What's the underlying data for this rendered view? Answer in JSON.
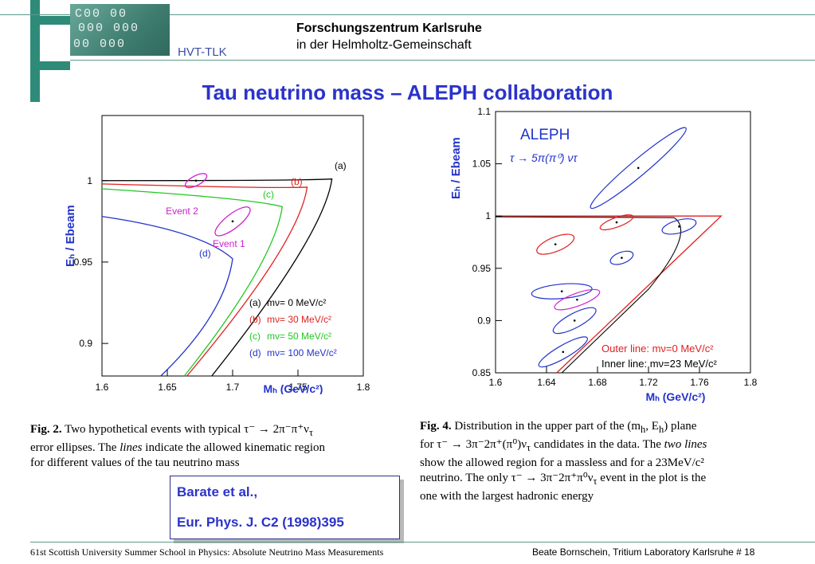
{
  "header": {
    "org_line1": "Forschungszentrum Karlsruhe",
    "org_line2": "in  der  Helmholtz-Gemeinschaft",
    "unit": "HVT-TLK",
    "accent_color": "#2e8b7a"
  },
  "slide_title": "Tau neutrino mass – ALEPH collaboration",
  "figure_left": {
    "caption_label": "Fig. 2.",
    "caption_l1": " Two hypothetical events with typical τ⁻ → 2π⁻π⁺ν",
    "caption_sub": "τ",
    "caption_l2": "error ellipses. The ",
    "caption_lines": "lines",
    "caption_l2b": " indicate the allowed kinematic region",
    "caption_l3": "for different values of the tau neutrino mass"
  },
  "figure_right": {
    "caption_label": "Fig. 4.",
    "caption_l1": " Distribution in the upper part of the (m",
    "caption_l1_sub": "h",
    "caption_l1b": ", E",
    "caption_l1c": ") plane",
    "caption_l2": "for τ⁻ → 3π⁻2π⁺(π⁰)ν",
    "caption_l2b": " candidates in the data. The ",
    "caption_two_lines": "two lines",
    "caption_l3": "show the allowed region for a massless and for a 23MeV/c²",
    "caption_l4": "neutrino. The only τ⁻ → 3π⁻2π⁺π⁰ν",
    "caption_l4b": " event in the plot is the",
    "caption_l5": "one with the largest hadronic energy"
  },
  "reference": {
    "line1": "Barate et al.,",
    "line2": "Eur. Phys. J. C2 (1998)395"
  },
  "footer": {
    "left": "61st Scottish University Summer School in Physics: Absolute Neutrino Mass Measurements",
    "right": "Beate Bornschein, Tritium Laboratory Karlsruhe   # 18"
  },
  "chart_data": [
    {
      "type": "line",
      "xlabel": "Mₕ (GeV/c²)",
      "ylabel": "Eₕ / Ebeam",
      "xlim": [
        1.6,
        1.8
      ],
      "ylim": [
        0.88,
        1.04
      ],
      "x_ticks": [
        "1.6",
        "1.65",
        "1.7",
        "1.75",
        "1.8"
      ],
      "y_ticks": [
        "0.9",
        "0.95",
        "1"
      ],
      "legend": [
        {
          "tag": "(a)",
          "text": "mν=   0 MeV/c²",
          "color": "#000000"
        },
        {
          "tag": "(b)",
          "text": "mν=  30 MeV/c²",
          "color": "#e02020"
        },
        {
          "tag": "(c)",
          "text": "mν=  50 MeV/c²",
          "color": "#22c722"
        },
        {
          "tag": "(d)",
          "text": "mν= 100 MeV/c²",
          "color": "#2233cc"
        }
      ],
      "curve_tags": [
        "(a)",
        "(b)",
        "(c)",
        "(d)"
      ],
      "events": [
        {
          "label": "Event 2",
          "x": 1.672,
          "y": 1.0,
          "color": "#cc22cc"
        },
        {
          "label": "Event 1",
          "x": 1.7,
          "y": 0.975,
          "color": "#cc22cc"
        }
      ]
    },
    {
      "type": "scatter",
      "xlabel": "Mₕ (GeV/c²)",
      "ylabel": "Eₕ / Ebeam",
      "xlim": [
        1.6,
        1.8
      ],
      "ylim": [
        0.85,
        1.1
      ],
      "x_ticks": [
        "1.6",
        "1.64",
        "1.68",
        "1.72",
        "1.76",
        "1.8"
      ],
      "y_ticks": [
        "0.85",
        "0.9",
        "0.95",
        "1",
        "1.05",
        "1.1"
      ],
      "annotation_title": "ALEPH",
      "annotation_decay": "τ → 5π(π⁰) ντ",
      "legend": [
        {
          "text": "Outer line: mν=0 MeV/c²",
          "color": "#e02020"
        },
        {
          "text": "Inner line: mν=23 MeV/c²",
          "color": "#000000"
        }
      ],
      "points": [
        {
          "x": 1.712,
          "y": 1.046,
          "color": "#2233cc"
        },
        {
          "x": 1.695,
          "y": 0.994,
          "color": "#e02020"
        },
        {
          "x": 1.744,
          "y": 0.99,
          "color": "#2233cc"
        },
        {
          "x": 1.647,
          "y": 0.973,
          "color": "#e02020"
        },
        {
          "x": 1.699,
          "y": 0.96,
          "color": "#2233cc"
        },
        {
          "x": 1.652,
          "y": 0.928,
          "color": "#2233cc"
        },
        {
          "x": 1.664,
          "y": 0.92,
          "color": "#cc22cc"
        },
        {
          "x": 1.662,
          "y": 0.9,
          "color": "#2233cc"
        },
        {
          "x": 1.653,
          "y": 0.87,
          "color": "#2233cc"
        }
      ]
    }
  ]
}
